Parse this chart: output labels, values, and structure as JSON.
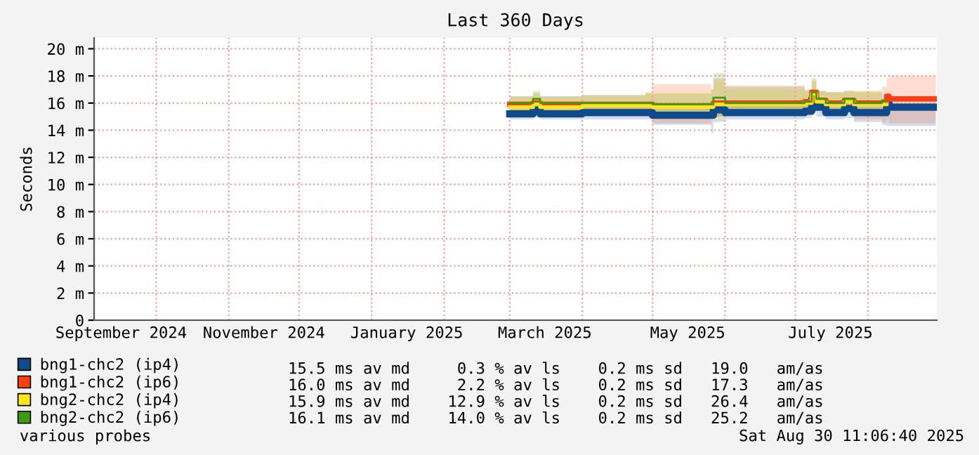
{
  "chart_data": {
    "type": "step",
    "title": "Last 360 Days",
    "ylabel": "Seconds",
    "xlim": [
      "2024-09-04T11:06",
      "2025-08-30T11:06"
    ],
    "xticks": [
      {
        "value": "2024-09-16",
        "label": "September 2024"
      },
      {
        "value": "2024-10-01",
        "label": null
      },
      {
        "value": "2024-11-01",
        "label": null
      },
      {
        "value": "2024-11-16",
        "label": "November 2024"
      },
      {
        "value": "2024-12-01",
        "label": null
      },
      {
        "value": "2025-01-01",
        "label": null
      },
      {
        "value": "2025-01-16",
        "label": "January 2025"
      },
      {
        "value": "2025-02-01",
        "label": null
      },
      {
        "value": "2025-03-01",
        "label": null
      },
      {
        "value": "2025-03-16",
        "label": "March 2025"
      },
      {
        "value": "2025-04-01",
        "label": null
      },
      {
        "value": "2025-05-01",
        "label": null
      },
      {
        "value": "2025-05-16",
        "label": "May 2025"
      },
      {
        "value": "2025-06-01",
        "label": null
      },
      {
        "value": "2025-07-01",
        "label": null
      },
      {
        "value": "2025-07-16",
        "label": "July 2025"
      },
      {
        "value": "2025-08-01",
        "label": null
      }
    ],
    "ylim": [
      0,
      20.8
    ],
    "yticks": [
      0,
      {
        "value": 2,
        "label": "2 m"
      },
      {
        "value": 4,
        "label": "4 m"
      },
      {
        "value": 6,
        "label": "6 m"
      },
      {
        "value": 8,
        "label": "8 m"
      },
      {
        "value": 10,
        "label": "10 m"
      },
      {
        "value": 12,
        "label": "12 m"
      },
      {
        "value": 14,
        "label": "14 m"
      },
      {
        "value": 16,
        "label": "16 m"
      },
      {
        "value": 18,
        "label": "18 m"
      },
      {
        "value": 20,
        "label": "20 m"
      }
    ],
    "grid": true,
    "legend": "bottom",
    "x": [
      "2025-03-01",
      "2025-03-10",
      "2025-03-11",
      "2025-03-14",
      "2025-04-01",
      "2025-04-28",
      "2025-05-01",
      "2025-05-26",
      "2025-05-27",
      "2025-06-01",
      "2025-07-05",
      "2025-07-08",
      "2025-07-10",
      "2025-07-14",
      "2025-07-22",
      "2025-07-26",
      "2025-08-07",
      "2025-08-09",
      "2025-08-10",
      "2025-08-30"
    ],
    "series": [
      {
        "name": "bng1-chc2 (ip4)",
        "color": "#0f4a8a",
        "values": [
          15.2,
          15.2,
          15.5,
          15.2,
          15.3,
          15.3,
          15.1,
          15.1,
          15.5,
          15.3,
          15.4,
          16.3,
          15.7,
          15.3,
          15.6,
          15.3,
          15.3,
          16.0,
          15.7,
          15.7
        ],
        "lower": [
          14.8,
          14.8,
          14.9,
          14.8,
          14.8,
          14.8,
          14.4,
          13.8,
          14.6,
          14.8,
          14.9,
          15.3,
          15.0,
          14.8,
          14.9,
          14.6,
          14.4,
          14.3,
          14.3,
          14.3
        ],
        "upper": [
          15.6,
          15.6,
          15.9,
          15.6,
          15.7,
          15.8,
          15.8,
          16.0,
          16.0,
          15.8,
          15.8,
          16.6,
          16.0,
          15.7,
          15.9,
          15.7,
          15.7,
          16.3,
          16.0,
          16.0
        ]
      },
      {
        "name": "bng1-chc2 (ip6)",
        "color": "#ff3f10",
        "values": [
          15.9,
          15.9,
          16.0,
          15.9,
          15.9,
          15.9,
          15.8,
          15.8,
          16.0,
          16.0,
          16.1,
          16.8,
          16.2,
          16.0,
          16.2,
          16.0,
          16.0,
          16.5,
          16.3,
          16.3
        ],
        "lower": [
          15.4,
          15.4,
          15.5,
          15.4,
          15.4,
          15.4,
          14.5,
          14.8,
          15.0,
          15.4,
          15.5,
          15.8,
          15.6,
          15.4,
          15.5,
          14.8,
          14.6,
          14.8,
          14.5,
          14.5
        ],
        "upper": [
          16.5,
          16.5,
          16.7,
          16.5,
          16.6,
          16.8,
          17.4,
          17.0,
          17.8,
          17.3,
          17.0,
          17.6,
          16.9,
          16.8,
          16.9,
          16.9,
          17.2,
          17.8,
          18.0,
          17.8
        ]
      },
      {
        "name": "bng2-chc2 (ip4)",
        "color": "#ffe51f",
        "values": [
          15.7,
          15.7,
          15.9,
          15.7,
          15.8,
          15.8,
          15.7,
          15.7,
          15.9,
          15.9,
          16.0,
          16.7,
          16.1,
          15.9,
          16.1,
          15.9,
          15.9,
          null,
          null,
          null
        ],
        "lower": [
          15.2,
          15.2,
          15.3,
          15.2,
          15.2,
          15.2,
          15.0,
          14.6,
          14.8,
          15.1,
          15.2,
          15.4,
          15.4,
          15.2,
          15.3,
          15.0,
          15.0,
          null,
          null,
          null
        ],
        "upper": [
          16.4,
          16.4,
          16.8,
          16.4,
          16.5,
          16.8,
          16.8,
          17.2,
          17.6,
          17.0,
          16.9,
          17.8,
          16.9,
          16.8,
          16.9,
          16.9,
          16.9,
          null,
          null,
          null
        ]
      },
      {
        "name": "bng2-chc2 (ip6)",
        "color": "#3f9a10",
        "values": [
          16.0,
          16.0,
          16.3,
          16.0,
          16.0,
          16.0,
          15.9,
          15.9,
          16.4,
          16.0,
          16.1,
          16.8,
          16.3,
          16.0,
          16.3,
          16.0,
          16.2,
          null,
          null,
          null
        ],
        "lower": [
          15.5,
          15.5,
          15.6,
          15.5,
          15.5,
          15.5,
          15.2,
          14.9,
          15.0,
          15.3,
          15.4,
          15.6,
          15.6,
          15.4,
          15.5,
          15.2,
          15.2,
          null,
          null,
          null
        ],
        "upper": [
          16.5,
          16.5,
          16.9,
          16.5,
          16.6,
          16.7,
          16.7,
          17.0,
          18.2,
          17.2,
          16.9,
          17.8,
          16.9,
          16.8,
          16.9,
          16.8,
          17.0,
          null,
          null,
          null
        ]
      }
    ],
    "annotations": [
      "15.5 ms av md     0.3 % av ls    0.2 ms sd   19.0   am/as",
      "16.0 ms av md     2.2 % av ls    0.2 ms sd   17.3   am/as",
      "15.9 ms av md    12.9 % av ls    0.2 ms sd   26.4   am/as",
      "16.1 ms av md    14.0 % av ls    0.2 ms sd   25.2   am/as",
      "various probes",
      "Sat Aug 30 11:06:40 2025"
    ]
  }
}
